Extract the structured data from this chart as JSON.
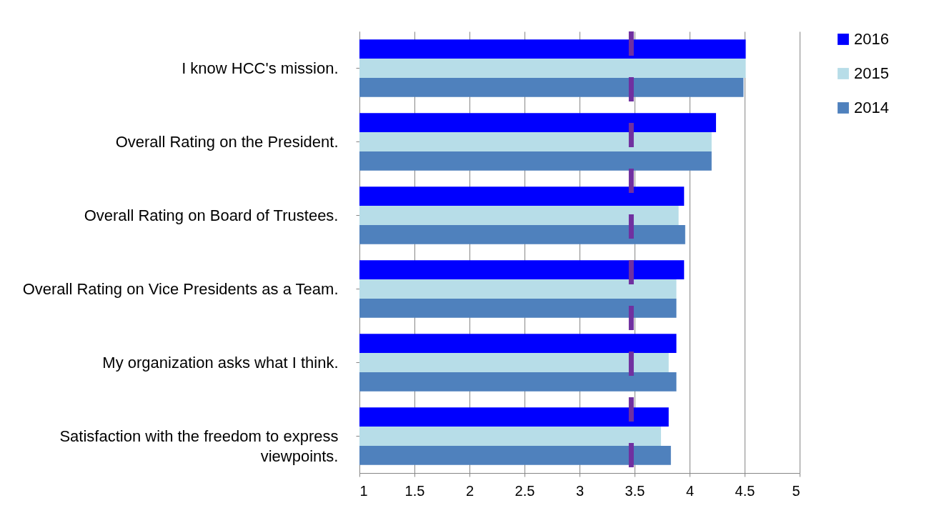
{
  "chart_data": {
    "type": "bar",
    "orientation": "horizontal",
    "categories": [
      "I know HCC's mission.",
      "Overall Rating on the President.",
      "Overall Rating on Board of Trustees.",
      "Overall Rating on Vice Presidents as a Team.",
      "My organization asks what I think.",
      "Satisfaction with the freedom to express viewpoints."
    ],
    "series": [
      {
        "name": "2016",
        "color": "#0000ff",
        "values": [
          4.51,
          4.24,
          3.95,
          3.95,
          3.88,
          3.81
        ]
      },
      {
        "name": "2015",
        "color": "#b7dde8",
        "values": [
          4.51,
          4.2,
          3.9,
          3.88,
          3.81,
          3.74
        ]
      },
      {
        "name": "2014",
        "color": "#4f81bd",
        "values": [
          4.49,
          4.2,
          3.96,
          3.88,
          3.88,
          3.83
        ]
      }
    ],
    "xlim": [
      1,
      5
    ],
    "xticks": [
      1,
      1.5,
      2,
      2.5,
      3,
      3.5,
      4,
      4.5,
      5
    ],
    "grid": "x",
    "legend": "right",
    "ref_lines": [
      {
        "axis": "x",
        "value": 3.47,
        "color": "#7030a0",
        "line_style": "dashed"
      }
    ]
  }
}
